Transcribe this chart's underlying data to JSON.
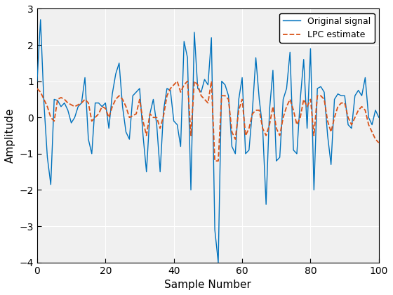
{
  "x": [
    0,
    1,
    2,
    3,
    4,
    5,
    6,
    7,
    8,
    9,
    10,
    11,
    12,
    13,
    14,
    15,
    16,
    17,
    18,
    19,
    20,
    21,
    22,
    23,
    24,
    25,
    26,
    27,
    28,
    29,
    30,
    31,
    32,
    33,
    34,
    35,
    36,
    37,
    38,
    39,
    40,
    41,
    42,
    43,
    44,
    45,
    46,
    47,
    48,
    49,
    50,
    51,
    52,
    53,
    54,
    55,
    56,
    57,
    58,
    59,
    60,
    61,
    62,
    63,
    64,
    65,
    66,
    67,
    68,
    69,
    70,
    71,
    72,
    73,
    74,
    75,
    76,
    77,
    78,
    79,
    80,
    81,
    82,
    83,
    84,
    85,
    86,
    87,
    88,
    89,
    90,
    91,
    92,
    93,
    94,
    95,
    96,
    97,
    98,
    99,
    100
  ],
  "orig": [
    1.0,
    2.7,
    0.4,
    -1.1,
    -1.85,
    0.5,
    0.47,
    0.3,
    0.4,
    0.2,
    -0.15,
    0.0,
    0.3,
    0.4,
    1.1,
    -0.6,
    -1.0,
    0.4,
    0.4,
    0.3,
    0.4,
    -0.3,
    0.65,
    1.2,
    1.5,
    0.3,
    -0.4,
    -0.6,
    0.6,
    0.7,
    0.8,
    -0.5,
    -1.5,
    0.1,
    0.5,
    -0.2,
    -1.5,
    0.2,
    0.8,
    0.75,
    -0.1,
    -0.2,
    -0.8,
    2.1,
    1.65,
    -2.0,
    2.35,
    0.8,
    0.7,
    1.05,
    0.9,
    2.2,
    -3.1,
    -4.0,
    1.0,
    0.9,
    0.6,
    -0.8,
    -1.0,
    0.5,
    1.1,
    -1.0,
    -0.9,
    0.2,
    1.65,
    0.5,
    -0.3,
    -2.4,
    0.2,
    1.3,
    -1.2,
    -1.1,
    0.5,
    0.8,
    1.8,
    -0.9,
    -1.0,
    0.5,
    1.6,
    -0.3,
    1.9,
    -2.0,
    0.8,
    0.85,
    0.7,
    -0.5,
    -1.3,
    0.5,
    0.65,
    0.6,
    0.6,
    -0.2,
    -0.3,
    0.6,
    0.75,
    0.6,
    1.1,
    -0.0,
    -0.2,
    0.2,
    0.0
  ],
  "lpc": [
    0.8,
    0.7,
    0.5,
    0.3,
    0.0,
    -0.1,
    0.5,
    0.55,
    0.5,
    0.4,
    0.35,
    0.3,
    0.35,
    0.4,
    0.5,
    0.4,
    -0.1,
    0.0,
    0.1,
    0.3,
    0.25,
    -0.0,
    0.3,
    0.5,
    0.6,
    0.5,
    0.3,
    -0.0,
    0.05,
    0.1,
    0.5,
    -0.1,
    -0.5,
    0.1,
    0.0,
    0.0,
    -0.3,
    0.05,
    0.6,
    0.8,
    0.9,
    1.0,
    0.7,
    0.9,
    1.0,
    -0.5,
    1.0,
    0.9,
    0.6,
    0.5,
    0.4,
    1.0,
    -1.2,
    -1.2,
    0.6,
    0.6,
    0.5,
    -0.4,
    -0.6,
    0.2,
    0.5,
    -0.5,
    -0.3,
    0.1,
    0.2,
    0.2,
    -0.3,
    -0.5,
    -0.2,
    0.3,
    -0.3,
    -0.5,
    0.0,
    0.3,
    0.5,
    0.2,
    -0.2,
    0.0,
    0.5,
    0.3,
    0.5,
    -0.5,
    0.6,
    0.6,
    0.5,
    -0.1,
    -0.4,
    0.0,
    0.3,
    0.4,
    0.4,
    -0.0,
    -0.2,
    0.0,
    0.2,
    0.3,
    0.2,
    -0.2,
    -0.4,
    -0.6,
    -0.7
  ],
  "orig_color": "#0072BD",
  "lpc_color": "#D95319",
  "orig_label": "Original signal",
  "lpc_label": "LPC estimate",
  "xlabel": "Sample Number",
  "ylabel": "Amplitude",
  "xlim": [
    0,
    100
  ],
  "ylim": [
    -4,
    3
  ],
  "yticks": [
    -4,
    -3,
    -2,
    -1,
    0,
    1,
    2,
    3
  ],
  "xticks": [
    0,
    20,
    40,
    60,
    80,
    100
  ],
  "grid": true,
  "linewidth_orig": 1.0,
  "linewidth_lpc": 1.3,
  "axes_bg": "#F0F0F0",
  "fig_bg": "#FFFFFF",
  "grid_color": "#FFFFFF",
  "tick_fontsize": 10,
  "label_fontsize": 11
}
